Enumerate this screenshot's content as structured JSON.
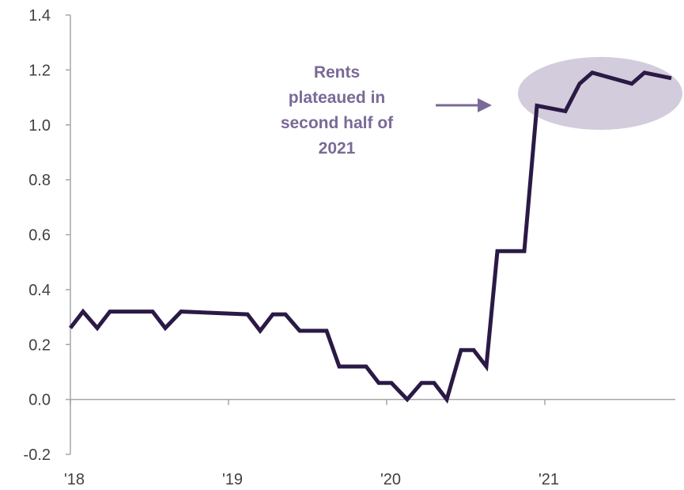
{
  "chart_data": {
    "type": "line",
    "title": "",
    "xlabel": "",
    "ylabel": "",
    "ylim": [
      -0.2,
      1.4
    ],
    "yticks": [
      "1.4",
      "1.2",
      "1.0",
      "0.8",
      "0.6",
      "0.4",
      "0.2",
      "0.0",
      "-0.2"
    ],
    "xticks": [
      "'18",
      "'19",
      "'20",
      "'21"
    ],
    "grid": false,
    "series": [
      {
        "color": "#2b1a45",
        "x": [
          2018.0,
          2018.08,
          2018.17,
          2018.25,
          2018.52,
          2018.6,
          2018.7,
          2019.12,
          2019.2,
          2019.28,
          2019.36,
          2019.45,
          2019.62,
          2019.7,
          2019.87,
          2019.95,
          2020.03,
          2020.13,
          2020.22,
          2020.3,
          2020.38,
          2020.47,
          2020.55,
          2020.63,
          2020.7,
          2020.87,
          2020.95,
          2021.13,
          2021.22,
          2021.3,
          2021.55,
          2021.63,
          2021.8
        ],
        "y": [
          0.26,
          0.32,
          0.26,
          0.32,
          0.32,
          0.26,
          0.32,
          0.31,
          0.25,
          0.31,
          0.31,
          0.25,
          0.25,
          0.12,
          0.12,
          0.06,
          0.06,
          0.0,
          0.06,
          0.06,
          0.0,
          0.18,
          0.18,
          0.12,
          0.54,
          0.54,
          1.07,
          1.05,
          1.15,
          1.19,
          1.15,
          1.19,
          1.17
        ]
      }
    ],
    "annotation": {
      "lines": [
        "Rents",
        "plateaued in",
        "second half of",
        "2021"
      ],
      "highlight_color": "#d2ccdc",
      "arrow_color": "#7a6a96"
    }
  }
}
